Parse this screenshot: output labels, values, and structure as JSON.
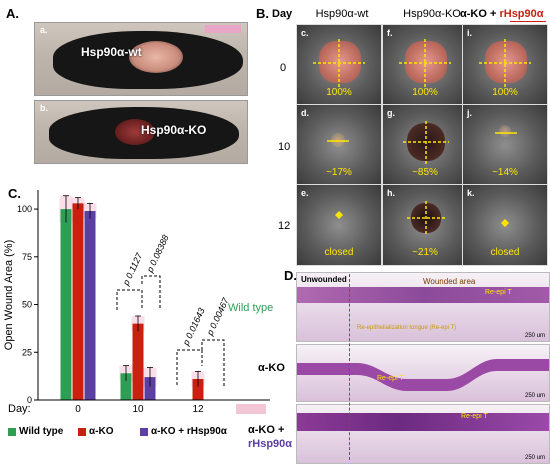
{
  "panel_a": {
    "letter": "A.",
    "photo_a_letter": "a.",
    "photo_a_label": "Hsp90α-wt",
    "photo_b_letter": "b.",
    "photo_b_label": "Hsp90α-KO"
  },
  "panel_b": {
    "letter": "B.",
    "day_header": "Day",
    "col_heads": [
      "Hsp90α-wt",
      "Hsp90α-KO",
      "α-KO + "
    ],
    "col3_highlight": "rHsp90α",
    "rows": [
      {
        "day": "0",
        "tiles": [
          {
            "letter": "c.",
            "pct": "100%"
          },
          {
            "letter": "f.",
            "pct": "100%"
          },
          {
            "letter": "i.",
            "pct": "100%"
          }
        ]
      },
      {
        "day": "10",
        "tiles": [
          {
            "letter": "d.",
            "pct": "~17%"
          },
          {
            "letter": "g.",
            "pct": "~85%"
          },
          {
            "letter": "j.",
            "pct": "~14%"
          }
        ]
      },
      {
        "day": "12",
        "tiles": [
          {
            "letter": "e.",
            "pct": "closed"
          },
          {
            "letter": "h.",
            "pct": "~21%"
          },
          {
            "letter": "k.",
            "pct": "closed"
          }
        ]
      }
    ]
  },
  "panel_c": {
    "letter": "C.",
    "day_prefix": "Day:",
    "p_values": [
      "p 0.1127",
      "p 0.08388",
      "p 0.01643",
      "p 0.00467"
    ],
    "legend": [
      {
        "label": "Wild type",
        "color": "#2e9e55"
      },
      {
        "label": "α-KO",
        "color": "#c9200f"
      },
      {
        "label": "α-KO + rHsp90α",
        "color": "#5b3fa3"
      }
    ]
  },
  "chart_data": {
    "type": "bar",
    "categories": [
      "0",
      "10",
      "12"
    ],
    "ylabel": "Open Wound Area (%)",
    "ylim": [
      0,
      110
    ],
    "yticks": [
      "0",
      "25",
      "50",
      "75",
      "100"
    ],
    "series": [
      {
        "name": "Wild type",
        "color": "#2e9e55",
        "values": [
          100,
          14,
          0
        ],
        "errors": [
          7,
          4,
          0
        ]
      },
      {
        "name": "α-KO",
        "color": "#c9200f",
        "values": [
          103,
          40,
          11
        ],
        "errors": [
          3,
          4,
          4
        ]
      },
      {
        "name": "α-KO + rHsp90α",
        "color": "#5b3fa3",
        "values": [
          99,
          12,
          0
        ],
        "errors": [
          4,
          5,
          0
        ]
      }
    ]
  },
  "panel_d": {
    "letter": "D.",
    "label_unwounded": "Unwounded",
    "label_wounded": "Wounded area",
    "row_labels": [
      "Wild type",
      "α-KO",
      "α-KO +"
    ],
    "row3_highlight": "rHsp90α",
    "tissue_tag": "Re-epi T",
    "re_epi_note": "Re-epithelialization tongue (Re-epi T)",
    "scale_bar": "250 um"
  }
}
